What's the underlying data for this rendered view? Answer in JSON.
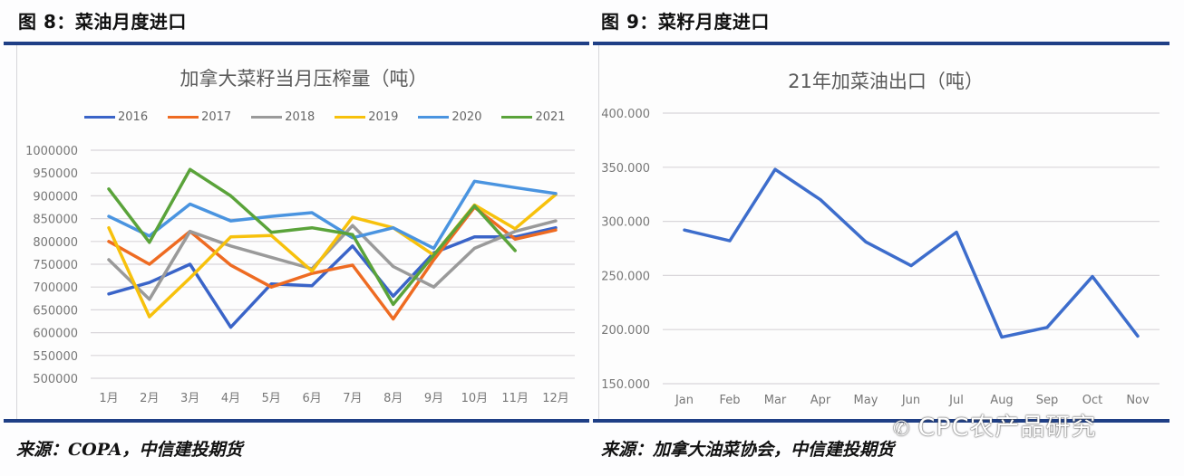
{
  "left": {
    "figure_title": "图 8：菜油月度进口",
    "source": "来源：COPA，中信建投期货"
  },
  "right": {
    "figure_title": "图 9：菜籽月度进口",
    "source": "来源：加拿大油菜协会，中信建投期货"
  },
  "watermark": "CPC农产品研究",
  "watermark_icon": "wechat-icon",
  "colors": {
    "rule": "#1f3f86",
    "2016": "#3a64c8",
    "2017": "#ee6b22",
    "2018": "#9a9a9a",
    "2019": "#f7c10c",
    "2020": "#4a94e0",
    "2021": "#5aa33a",
    "right_series": "#3d6dcc"
  },
  "chart_data": [
    {
      "type": "line",
      "title": "加拿大菜籽当月压榨量（吨）",
      "xlabel": "",
      "ylabel": "",
      "categories": [
        "1月",
        "2月",
        "3月",
        "4月",
        "5月",
        "6月",
        "7月",
        "8月",
        "9月",
        "10月",
        "11月",
        "12月"
      ],
      "ylim": [
        500000,
        1000000
      ],
      "yticks": [
        "1000000",
        "950000",
        "900000",
        "850000",
        "800000",
        "750000",
        "700000",
        "650000",
        "600000",
        "550000",
        "500000"
      ],
      "grid": true,
      "legend_position": "top",
      "series": [
        {
          "name": "2016",
          "values": [
            685000,
            710000,
            750000,
            612000,
            707000,
            703000,
            790000,
            680000,
            775000,
            810000,
            810000,
            830000
          ]
        },
        {
          "name": "2017",
          "values": [
            800000,
            750000,
            822000,
            748000,
            700000,
            730000,
            748000,
            630000,
            760000,
            875000,
            805000,
            825000
          ]
        },
        {
          "name": "2018",
          "values": [
            760000,
            673000,
            822000,
            790000,
            765000,
            740000,
            835000,
            745000,
            700000,
            785000,
            822000,
            845000
          ]
        },
        {
          "name": "2019",
          "values": [
            830000,
            635000,
            720000,
            810000,
            813000,
            735000,
            853000,
            830000,
            770000,
            880000,
            828000,
            903000
          ]
        },
        {
          "name": "2020",
          "values": [
            855000,
            812000,
            882000,
            845000,
            855000,
            863000,
            808000,
            830000,
            785000,
            932000,
            918000,
            905000
          ]
        },
        {
          "name": "2021",
          "values": [
            915000,
            798000,
            958000,
            900000,
            820000,
            830000,
            815000,
            662000,
            770000,
            878000,
            780000,
            null
          ]
        }
      ]
    },
    {
      "type": "line",
      "title": "21年加菜油出口（吨）",
      "xlabel": "",
      "ylabel": "",
      "categories": [
        "Jan",
        "Feb",
        "Mar",
        "Apr",
        "May",
        "Jun",
        "Jul",
        "Aug",
        "Sep",
        "Oct",
        "Nov"
      ],
      "ylim": [
        150000,
        400000
      ],
      "yticks": [
        "400.000",
        "350.000",
        "300.000",
        "250.000",
        "200.000",
        "150.000"
      ],
      "grid": true,
      "legend_position": "none",
      "series": [
        {
          "name": "21年加菜油出口",
          "values": [
            292000,
            282000,
            348000,
            320000,
            281000,
            259000,
            290000,
            193000,
            202000,
            249000,
            194000
          ]
        }
      ]
    }
  ]
}
